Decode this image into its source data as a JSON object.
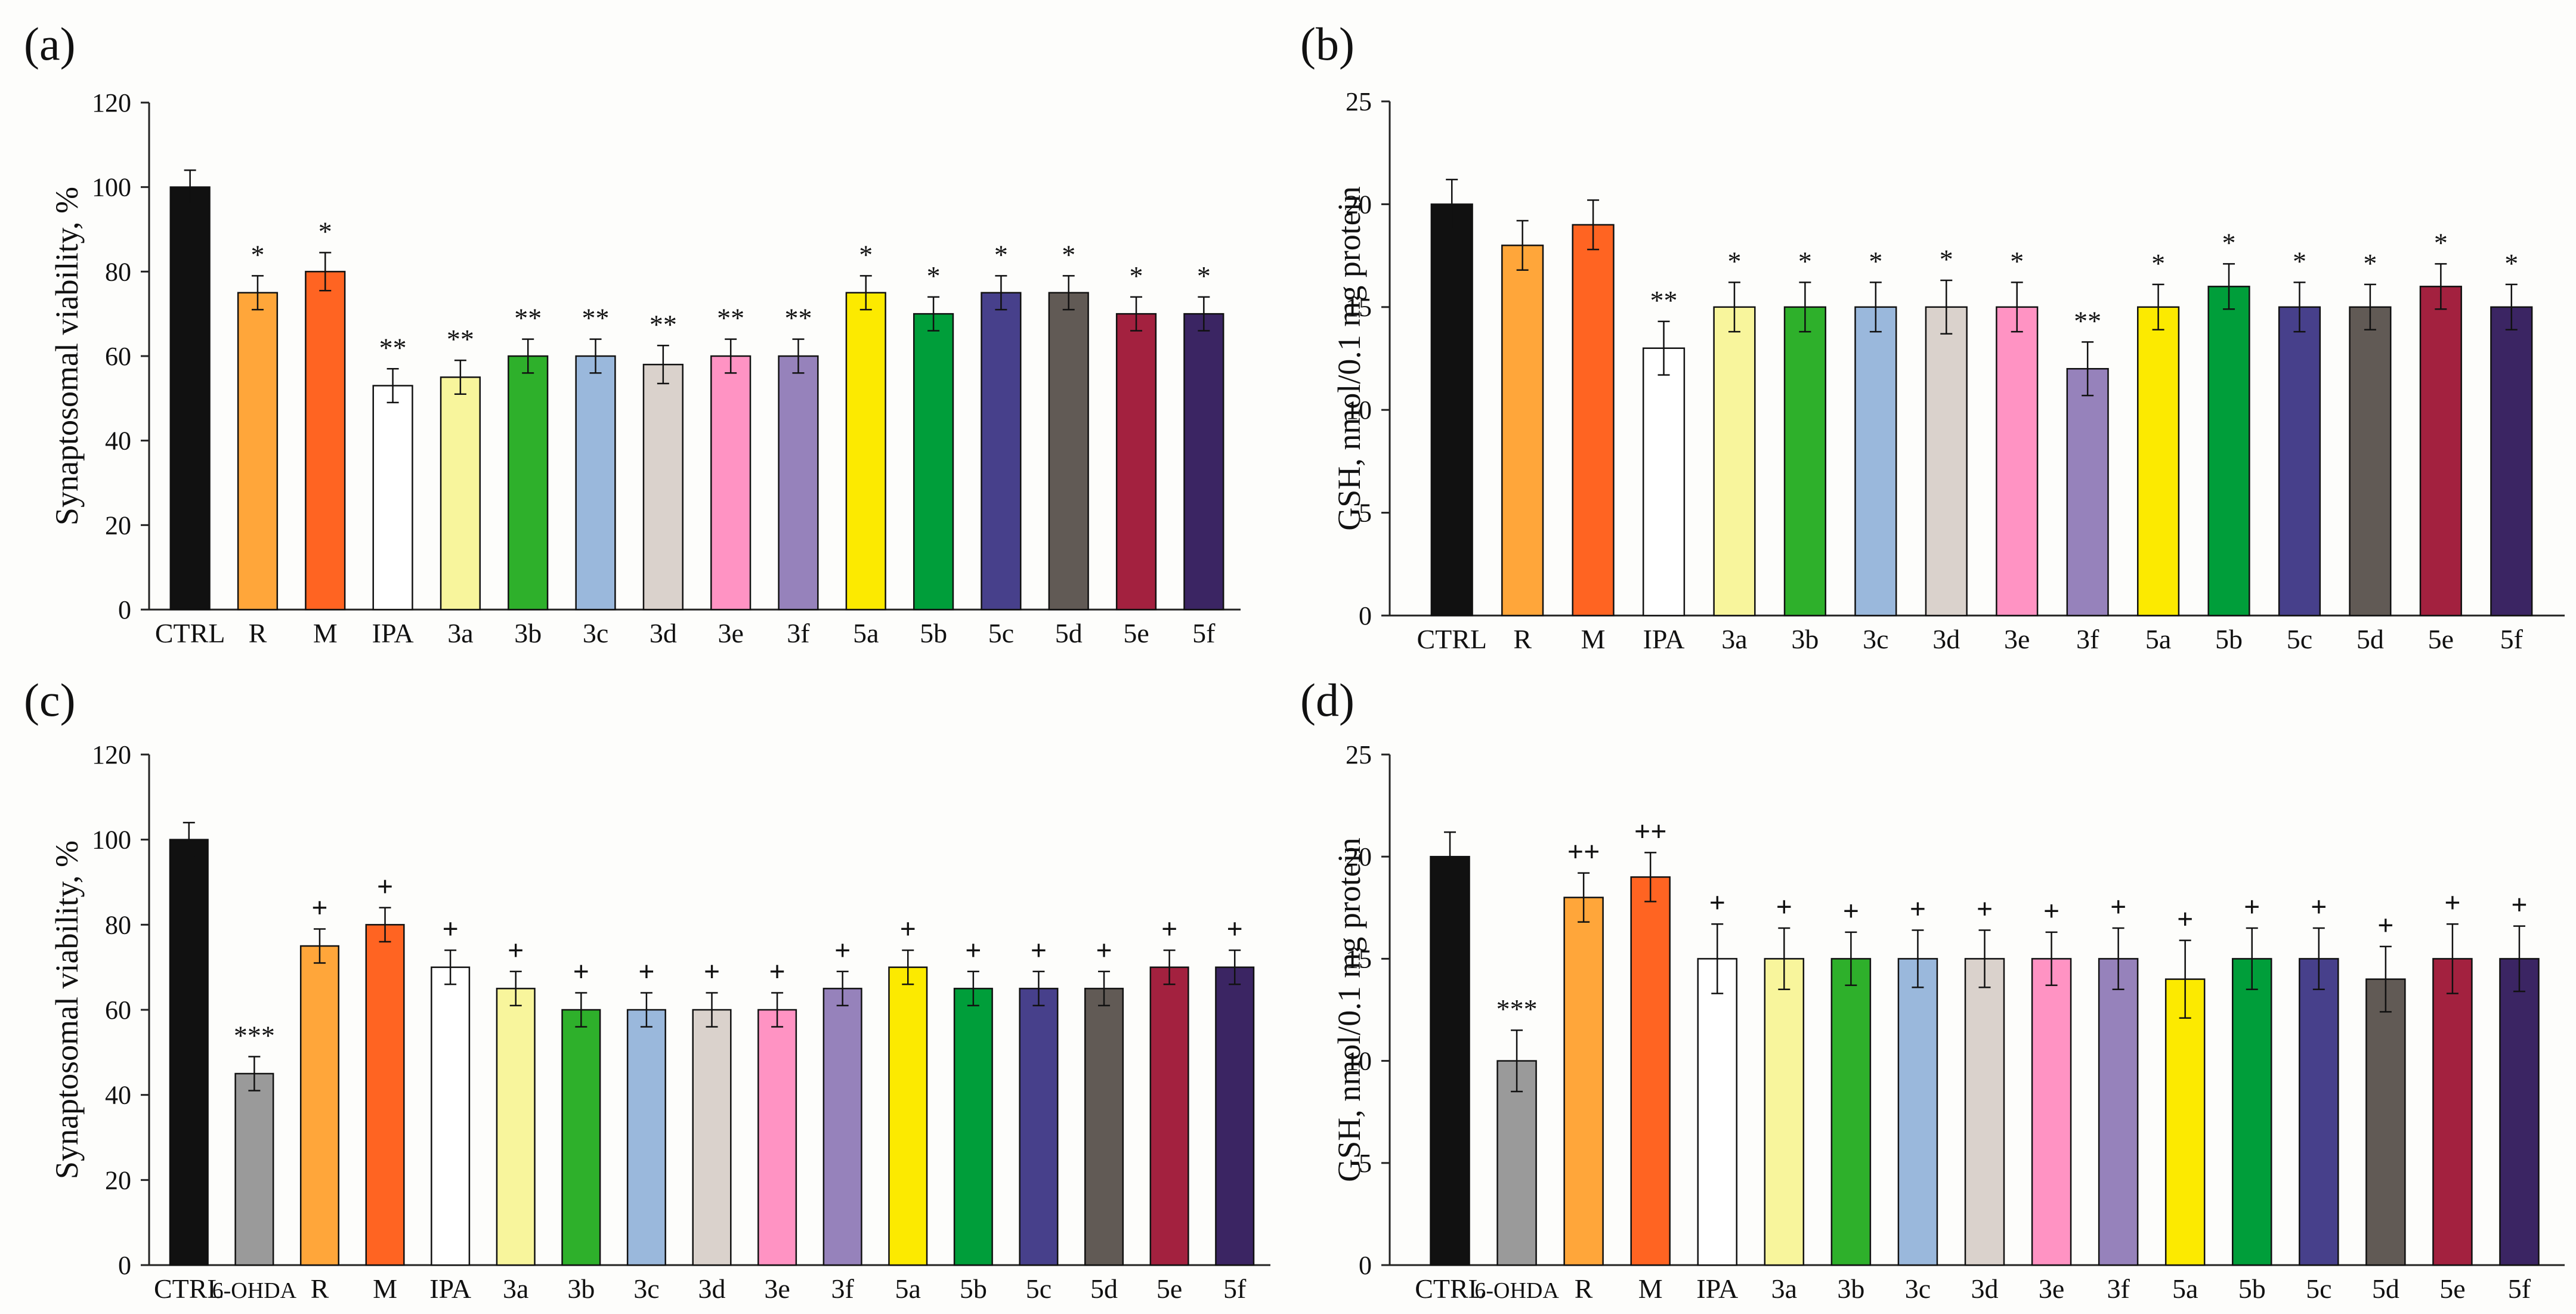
{
  "chart_data": [
    {
      "panel": "(a)",
      "type": "bar",
      "ylabel": "Synaptosomal viability, %",
      "ylim": [
        0,
        120
      ],
      "yticks": [
        0,
        20,
        40,
        60,
        80,
        100,
        120
      ],
      "categories": [
        "CTRL",
        "R",
        "M",
        "IPA",
        "3a",
        "3b",
        "3c",
        "3d",
        "3e",
        "3f",
        "5a",
        "5b",
        "5c",
        "5d",
        "5e",
        "5f"
      ],
      "values": [
        100,
        75,
        80,
        53,
        55,
        60,
        60,
        58,
        60,
        60,
        75,
        70,
        75,
        75,
        70,
        70
      ],
      "errors": [
        4,
        4,
        4.5,
        4,
        4,
        4,
        4,
        4.5,
        4,
        4,
        4,
        4,
        4,
        4,
        4,
        4
      ],
      "annotations": [
        "",
        "*",
        "*",
        "**",
        "**",
        "**",
        "**",
        "**",
        "**",
        "**",
        "*",
        "*",
        "*",
        "*",
        "*",
        "*"
      ],
      "colors": [
        "#111111",
        "#ffa63a",
        "#ff6422",
        "#ffffff",
        "#f8f59c",
        "#2eb02b",
        "#9ab8dc",
        "#dad2cc",
        "#ff93c3",
        "#9682bb",
        "#fcea00",
        "#009e3a",
        "#47408b",
        "#615a55",
        "#a3213f",
        "#3b2563"
      ]
    },
    {
      "panel": "(b)",
      "type": "bar",
      "ylabel": "GSH, nmol/0.1 mg protein",
      "ylim": [
        0,
        25
      ],
      "yticks": [
        0,
        5,
        10,
        15,
        20,
        25
      ],
      "categories": [
        "CTRL",
        "R",
        "M",
        "IPA",
        "3a",
        "3b",
        "3c",
        "3d",
        "3e",
        "3f",
        "5a",
        "5b",
        "5c",
        "5d",
        "5e",
        "5f"
      ],
      "values": [
        20,
        18,
        19,
        13,
        15,
        15,
        15,
        15,
        15,
        12,
        15,
        16,
        15,
        15,
        16,
        15
      ],
      "errors": [
        1.2,
        1.2,
        1.2,
        1.3,
        1.2,
        1.2,
        1.2,
        1.3,
        1.2,
        1.3,
        1.1,
        1.1,
        1.2,
        1.1,
        1.1,
        1.1
      ],
      "annotations": [
        "",
        "",
        "",
        "**",
        "*",
        "*",
        "*",
        "*",
        "*",
        "**",
        "*",
        "*",
        "*",
        "*",
        "*",
        "*"
      ],
      "colors": [
        "#111111",
        "#ffa63a",
        "#ff6422",
        "#ffffff",
        "#f8f59c",
        "#2eb02b",
        "#9ab8dc",
        "#dad2cc",
        "#ff93c3",
        "#9682bb",
        "#fcea00",
        "#009e3a",
        "#47408b",
        "#615a55",
        "#a3213f",
        "#3b2563"
      ]
    },
    {
      "panel": "(c)",
      "type": "bar",
      "ylabel": "Synaptosomal viability, %",
      "ylim": [
        0,
        120
      ],
      "yticks": [
        0,
        20,
        40,
        60,
        80,
        100,
        120
      ],
      "categories": [
        "CTRL",
        "6-OHDA",
        "R",
        "M",
        "IPA",
        "3a",
        "3b",
        "3c",
        "3d",
        "3e",
        "3f",
        "5a",
        "5b",
        "5c",
        "5d",
        "5e",
        "5f"
      ],
      "values": [
        100,
        45,
        75,
        80,
        70,
        65,
        60,
        60,
        60,
        60,
        65,
        70,
        65,
        65,
        65,
        70,
        70
      ],
      "errors": [
        4,
        4,
        4,
        4,
        4,
        4,
        4,
        4,
        4,
        4,
        4,
        4,
        4,
        4,
        4,
        4,
        4
      ],
      "annotations": [
        "",
        "***",
        "+",
        "+",
        "+",
        "+",
        "+",
        "+",
        "+",
        "+",
        "+",
        "+",
        "+",
        "+",
        "+",
        "+",
        "+"
      ],
      "colors": [
        "#111111",
        "#9a9a9a",
        "#ffa63a",
        "#ff6422",
        "#ffffff",
        "#f8f59c",
        "#2eb02b",
        "#9ab8dc",
        "#dad2cc",
        "#ff93c3",
        "#9682bb",
        "#fcea00",
        "#009e3a",
        "#47408b",
        "#615a55",
        "#a3213f",
        "#3b2563"
      ]
    },
    {
      "panel": "(d)",
      "type": "bar",
      "ylabel": "GSH, nmol/0.1 mg protein",
      "ylim": [
        0,
        25
      ],
      "yticks": [
        0,
        5,
        10,
        15,
        20,
        25
      ],
      "categories": [
        "CTRL",
        "6-OHDA",
        "R",
        "M",
        "IPA",
        "3a",
        "3b",
        "3c",
        "3d",
        "3e",
        "3f",
        "5a",
        "5b",
        "5c",
        "5d",
        "5e",
        "5f"
      ],
      "values": [
        20,
        10,
        18,
        19,
        15,
        15,
        15,
        15,
        15,
        15,
        15,
        14,
        15,
        15,
        14,
        15,
        15
      ],
      "errors": [
        1.2,
        1.5,
        1.2,
        1.2,
        1.7,
        1.5,
        1.3,
        1.4,
        1.4,
        1.3,
        1.5,
        1.9,
        1.5,
        1.5,
        1.6,
        1.7,
        1.6
      ],
      "annotations": [
        "",
        "***",
        "++",
        "++",
        "+",
        "+",
        "+",
        "+",
        "+",
        "+",
        "+",
        "+",
        "+",
        "+",
        "+",
        "+",
        "+"
      ],
      "colors": [
        "#111111",
        "#9a9a9a",
        "#ffa63a",
        "#ff6422",
        "#ffffff",
        "#f8f59c",
        "#2eb02b",
        "#9ab8dc",
        "#dad2cc",
        "#ff93c3",
        "#9682bb",
        "#fcea00",
        "#009e3a",
        "#47408b",
        "#615a55",
        "#a3213f",
        "#3b2563"
      ]
    }
  ]
}
